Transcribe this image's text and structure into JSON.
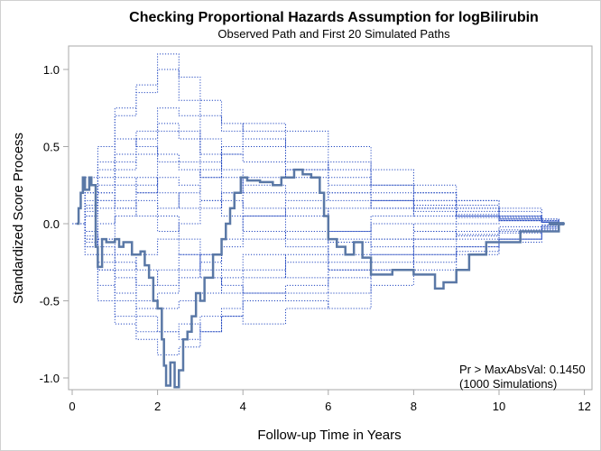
{
  "chart_data": {
    "type": "line",
    "title": "Checking Proportional Hazards Assumption for logBilirubin",
    "subtitle": "Observed Path and First 20 Simulated Paths",
    "xlabel": "Follow-up Time in Years",
    "ylabel": "Standardized Score Process",
    "xlim": [
      -0.1,
      12.2
    ],
    "ylim": [
      -1.1,
      1.15
    ],
    "xticks": [
      0,
      2,
      4,
      6,
      8,
      10,
      12
    ],
    "xtick_labels": [
      "0",
      "2",
      "4",
      "6",
      "8",
      "10",
      "12"
    ],
    "yticks": [
      -1.0,
      -0.5,
      0.0,
      0.5,
      1.0
    ],
    "ytick_labels": [
      "-1.0",
      "-0.5",
      "0.0",
      "0.5",
      "1.0"
    ],
    "grid": false,
    "annotation": [
      "Pr > MaxAbsVal: 0.1450",
      "(1000 Simulations)"
    ],
    "annotation_placement": "bottom-right",
    "colors": {
      "observed": "#5a78a6",
      "simulated": "#2348c0",
      "frame": "#a8a8a8"
    },
    "observed": {
      "name": "Observed Path",
      "x": [
        0.1,
        0.15,
        0.2,
        0.25,
        0.3,
        0.4,
        0.45,
        0.55,
        0.6,
        0.7,
        0.8,
        1.0,
        1.1,
        1.2,
        1.4,
        1.6,
        1.7,
        1.8,
        1.9,
        2.0,
        2.1,
        2.15,
        2.2,
        2.3,
        2.4,
        2.5,
        2.6,
        2.7,
        2.8,
        2.9,
        3.0,
        3.1,
        3.3,
        3.5,
        3.6,
        3.7,
        3.8,
        3.95,
        4.1,
        4.4,
        4.7,
        4.9,
        5.2,
        5.4,
        5.6,
        5.8,
        5.9,
        6.0,
        6.2,
        6.4,
        6.6,
        6.8,
        7.0,
        7.5,
        8.0,
        8.5,
        8.7,
        9.0,
        9.3,
        9.7,
        10.5,
        11.4
      ],
      "y": [
        0.0,
        0.1,
        0.2,
        0.3,
        0.22,
        0.3,
        0.25,
        -0.15,
        -0.28,
        -0.1,
        -0.12,
        -0.1,
        -0.15,
        -0.12,
        -0.2,
        -0.18,
        -0.27,
        -0.35,
        -0.5,
        -0.55,
        -0.75,
        -0.92,
        -1.05,
        -0.9,
        -1.06,
        -0.95,
        -0.75,
        -0.7,
        -0.6,
        -0.45,
        -0.5,
        -0.35,
        -0.2,
        -0.1,
        0.0,
        0.1,
        0.2,
        0.3,
        0.28,
        0.27,
        0.25,
        0.3,
        0.35,
        0.32,
        0.3,
        0.2,
        0.05,
        -0.1,
        -0.15,
        -0.2,
        -0.12,
        -0.22,
        -0.33,
        -0.3,
        -0.33,
        -0.42,
        -0.38,
        -0.3,
        -0.2,
        -0.12,
        -0.05,
        0.0
      ]
    },
    "simulated_x": [
      0,
      0.3,
      0.6,
      1,
      1.5,
      2,
      2.5,
      3,
      3.5,
      4,
      5,
      6,
      7,
      8,
      9,
      10,
      11,
      11.4
    ],
    "simulated": [
      [
        0,
        0.2,
        0.4,
        0.7,
        0.9,
        1.1,
        0.8,
        0.7,
        0.6,
        0.55,
        0.4,
        0.3,
        0.2,
        0.15,
        0.1,
        0.05,
        0.02,
        0
      ],
      [
        0,
        -0.15,
        -0.4,
        -0.6,
        -0.75,
        -0.85,
        -0.8,
        -0.7,
        -0.6,
        -0.5,
        -0.45,
        -0.35,
        -0.3,
        -0.2,
        -0.15,
        -0.1,
        -0.04,
        0
      ],
      [
        0,
        0.3,
        0.5,
        0.75,
        0.85,
        1.0,
        0.95,
        0.8,
        0.65,
        0.6,
        0.5,
        0.35,
        0.25,
        0.2,
        0.12,
        0.05,
        0.03,
        0
      ],
      [
        0,
        -0.2,
        -0.5,
        -0.65,
        -0.7,
        -0.7,
        -0.75,
        -0.6,
        -0.55,
        -0.45,
        -0.4,
        -0.3,
        -0.25,
        -0.2,
        -0.15,
        -0.1,
        -0.03,
        0
      ],
      [
        0,
        0.1,
        0.2,
        0.45,
        0.6,
        0.75,
        0.7,
        0.55,
        0.45,
        0.4,
        0.3,
        0.2,
        0.15,
        0.1,
        0.05,
        0.03,
        0.01,
        0
      ],
      [
        0,
        -0.1,
        -0.2,
        -0.35,
        -0.5,
        -0.55,
        -0.5,
        -0.45,
        -0.35,
        -0.3,
        -0.25,
        -0.2,
        -0.2,
        -0.15,
        -0.1,
        -0.06,
        -0.02,
        0
      ],
      [
        0,
        0.15,
        0.35,
        0.55,
        0.5,
        0.4,
        0.35,
        0.3,
        0.45,
        0.5,
        0.35,
        0.25,
        0.1,
        0.05,
        0.04,
        0.02,
        0.01,
        0
      ],
      [
        0,
        -0.05,
        -0.25,
        -0.3,
        -0.2,
        -0.1,
        -0.2,
        -0.3,
        -0.4,
        -0.45,
        -0.5,
        -0.55,
        -0.4,
        -0.3,
        -0.2,
        -0.12,
        -0.05,
        0
      ],
      [
        0,
        0.05,
        0.1,
        0.25,
        0.3,
        0.2,
        0.1,
        0.15,
        0.2,
        0.1,
        0.05,
        0.1,
        0.15,
        0.08,
        0.05,
        0.02,
        0.01,
        0
      ],
      [
        0,
        -0.08,
        -0.15,
        -0.2,
        -0.3,
        -0.4,
        -0.35,
        -0.25,
        -0.15,
        -0.1,
        -0.05,
        -0.12,
        -0.15,
        -0.1,
        -0.07,
        -0.05,
        -0.02,
        0
      ],
      [
        0,
        0.2,
        0.3,
        0.35,
        0.45,
        0.6,
        0.55,
        0.4,
        0.3,
        0.25,
        0.2,
        0.15,
        0.1,
        0.2,
        0.15,
        0.08,
        0.02,
        0
      ],
      [
        0,
        -0.12,
        -0.3,
        -0.45,
        -0.6,
        -0.7,
        -0.65,
        -0.7,
        -0.6,
        -0.65,
        -0.55,
        -0.45,
        -0.3,
        -0.25,
        -0.18,
        -0.1,
        -0.03,
        0
      ],
      [
        0,
        0.08,
        0.15,
        0.1,
        0.05,
        -0.05,
        0.0,
        0.1,
        0.2,
        0.3,
        0.35,
        0.4,
        0.25,
        0.15,
        0.1,
        0.04,
        0.01,
        0
      ],
      [
        0,
        -0.05,
        0.0,
        0.1,
        0.2,
        0.3,
        0.25,
        0.15,
        0.05,
        -0.05,
        -0.1,
        -0.05,
        0.05,
        0.1,
        0.06,
        0.03,
        0.01,
        0
      ],
      [
        0,
        0.1,
        0.25,
        0.4,
        0.55,
        0.65,
        0.6,
        0.45,
        0.35,
        0.2,
        0.1,
        -0.05,
        -0.1,
        -0.05,
        0.0,
        0.02,
        0.01,
        0
      ],
      [
        0,
        -0.1,
        -0.3,
        -0.5,
        -0.55,
        -0.45,
        -0.3,
        -0.2,
        -0.1,
        0.05,
        0.15,
        0.2,
        0.15,
        0.12,
        0.08,
        0.04,
        0.01,
        0
      ],
      [
        0,
        0.05,
        -0.1,
        -0.25,
        -0.4,
        -0.3,
        -0.2,
        -0.35,
        -0.45,
        -0.35,
        -0.2,
        -0.1,
        0.0,
        -0.05,
        -0.08,
        -0.04,
        -0.01,
        0
      ],
      [
        0,
        0.12,
        0.2,
        0.15,
        0.25,
        0.45,
        0.4,
        0.3,
        0.15,
        0.05,
        -0.15,
        -0.3,
        -0.2,
        -0.1,
        -0.05,
        -0.02,
        -0.01,
        0
      ],
      [
        0,
        -0.15,
        -0.1,
        0.05,
        0.15,
        0.05,
        -0.1,
        -0.2,
        -0.3,
        -0.2,
        -0.35,
        -0.25,
        -0.1,
        0.0,
        0.05,
        0.03,
        0.01,
        0
      ],
      [
        0,
        0.05,
        0.15,
        0.3,
        0.2,
        0.1,
        0.2,
        0.35,
        0.5,
        0.65,
        0.6,
        0.5,
        0.35,
        0.25,
        0.15,
        0.1,
        0.03,
        0
      ]
    ],
    "end_markers_x": [
      11.2,
      11.25,
      11.3,
      11.35,
      11.4,
      11.45,
      11.5
    ],
    "end_markers_y": [
      0,
      0,
      0,
      0,
      0,
      0,
      0
    ]
  }
}
